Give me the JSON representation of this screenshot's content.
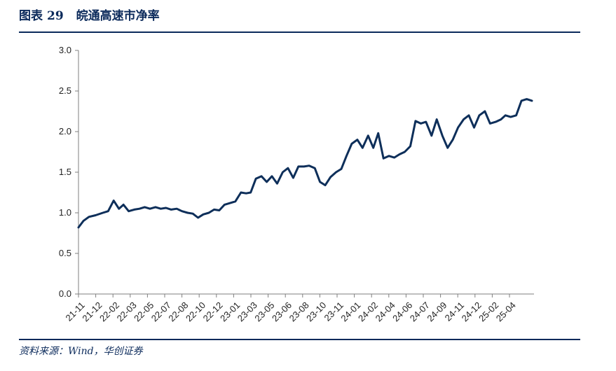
{
  "figure": {
    "label": "图表",
    "number": "29",
    "title": "皖通高速市净率",
    "source": "资料来源：Wind，华创证券"
  },
  "colors": {
    "accent": "#0b2a5b",
    "series": "#0e2f5a",
    "axis": "#7f7f7f"
  },
  "chart_data": {
    "type": "line",
    "title": "皖通高速市净率",
    "xlabel": "",
    "ylabel": "",
    "ylim": [
      0,
      3.0
    ],
    "yticks": [
      "0.0",
      "0.5",
      "1.0",
      "1.5",
      "2.0",
      "2.5",
      "3.0"
    ],
    "xtick_labels": [
      "21-11",
      "21-12",
      "22-02",
      "22-03",
      "22-05",
      "22-07",
      "22-08",
      "22-10",
      "22-12",
      "23-01",
      "23-03",
      "23-05",
      "23-06",
      "23-08",
      "23-10",
      "23-11",
      "24-01",
      "24-02",
      "24-04",
      "24-06",
      "24-07",
      "24-09",
      "24-11",
      "24-12",
      "25-02",
      "25-04"
    ],
    "grid": false,
    "legend": "none",
    "series": [
      {
        "x": [
          "2021-11-01",
          "2021-11-15",
          "2021-12-01",
          "2021-12-20",
          "2022-01-10",
          "2022-01-25",
          "2022-02-10",
          "2022-02-25",
          "2022-03-10",
          "2022-03-25",
          "2022-04-10",
          "2022-04-25",
          "2022-05-10",
          "2022-05-25",
          "2022-06-10",
          "2022-06-25",
          "2022-07-10",
          "2022-07-25",
          "2022-08-10",
          "2022-08-25",
          "2022-09-10",
          "2022-09-25",
          "2022-10-10",
          "2022-10-25",
          "2022-11-10",
          "2022-11-25",
          "2022-12-10",
          "2022-12-25",
          "2023-01-10",
          "2023-01-25",
          "2023-02-10",
          "2023-02-25",
          "2023-03-10",
          "2023-03-25",
          "2023-04-10",
          "2023-04-25",
          "2023-05-10",
          "2023-05-25",
          "2023-06-10",
          "2023-06-25",
          "2023-07-10",
          "2023-07-25",
          "2023-08-10",
          "2023-08-25",
          "2023-09-10",
          "2023-09-25",
          "2023-10-10",
          "2023-10-25",
          "2023-11-10",
          "2023-11-25",
          "2023-12-10",
          "2023-12-25",
          "2024-01-10",
          "2024-01-25",
          "2024-02-10",
          "2024-02-25",
          "2024-03-10",
          "2024-03-25",
          "2024-04-10",
          "2024-04-25",
          "2024-05-10",
          "2024-05-25",
          "2024-06-10",
          "2024-06-25",
          "2024-07-10",
          "2024-07-25",
          "2024-08-10",
          "2024-08-25",
          "2024-09-10",
          "2024-09-25",
          "2024-10-10",
          "2024-10-25",
          "2024-11-10",
          "2024-11-25",
          "2024-12-10",
          "2024-12-25",
          "2025-01-10",
          "2025-01-25",
          "2025-02-10",
          "2025-02-25",
          "2025-03-10",
          "2025-03-25",
          "2025-04-10",
          "2025-04-25",
          "2025-05-10",
          "2025-05-25"
        ],
        "values": [
          0.82,
          0.9,
          0.95,
          0.97,
          1.0,
          1.02,
          1.15,
          1.05,
          1.1,
          1.02,
          1.04,
          1.05,
          1.07,
          1.05,
          1.07,
          1.05,
          1.06,
          1.04,
          1.05,
          1.02,
          1.0,
          0.99,
          0.94,
          0.98,
          1.0,
          1.04,
          1.03,
          1.1,
          1.12,
          1.14,
          1.25,
          1.24,
          1.25,
          1.42,
          1.45,
          1.38,
          1.45,
          1.36,
          1.5,
          1.55,
          1.43,
          1.57,
          1.57,
          1.58,
          1.55,
          1.38,
          1.34,
          1.44,
          1.5,
          1.54,
          1.7,
          1.85,
          1.9,
          1.8,
          1.95,
          1.8,
          1.98,
          1.67,
          1.7,
          1.68,
          1.72,
          1.75,
          1.82,
          2.13,
          2.1,
          2.12,
          1.95,
          2.15,
          1.95,
          1.8,
          1.9,
          2.05,
          2.15,
          2.2,
          2.05,
          2.2,
          2.25,
          2.1,
          2.12,
          2.15,
          2.2,
          2.18,
          2.2,
          2.38,
          2.4,
          2.38
        ]
      }
    ]
  }
}
